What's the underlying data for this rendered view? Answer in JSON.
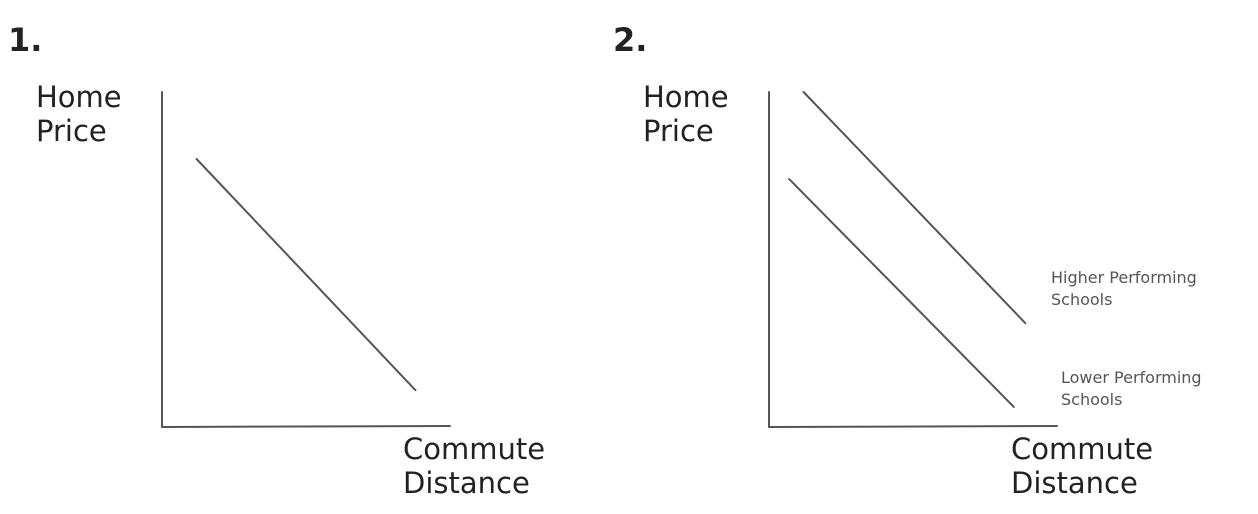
{
  "chart_data": [
    {
      "type": "line",
      "title": "1.",
      "ylabel": "Home\nPrice",
      "xlabel": "Commute\nDistance",
      "series": [
        {
          "name": "",
          "slope": "negative",
          "x": [
            0.12,
            0.88
          ],
          "y": [
            0.8,
            0.11
          ]
        }
      ]
    },
    {
      "type": "line",
      "title": "2.",
      "ylabel": "Home\nPrice",
      "xlabel": "Commute\nDistance",
      "series": [
        {
          "name": "Higher Performing\nSchools",
          "slope": "negative",
          "x": [
            0.12,
            0.89
          ],
          "y": [
            1.0,
            0.31
          ]
        },
        {
          "name": "Lower Performing\nSchools",
          "slope": "negative",
          "x": [
            0.07,
            0.85
          ],
          "y": [
            0.74,
            0.06
          ]
        }
      ]
    }
  ]
}
